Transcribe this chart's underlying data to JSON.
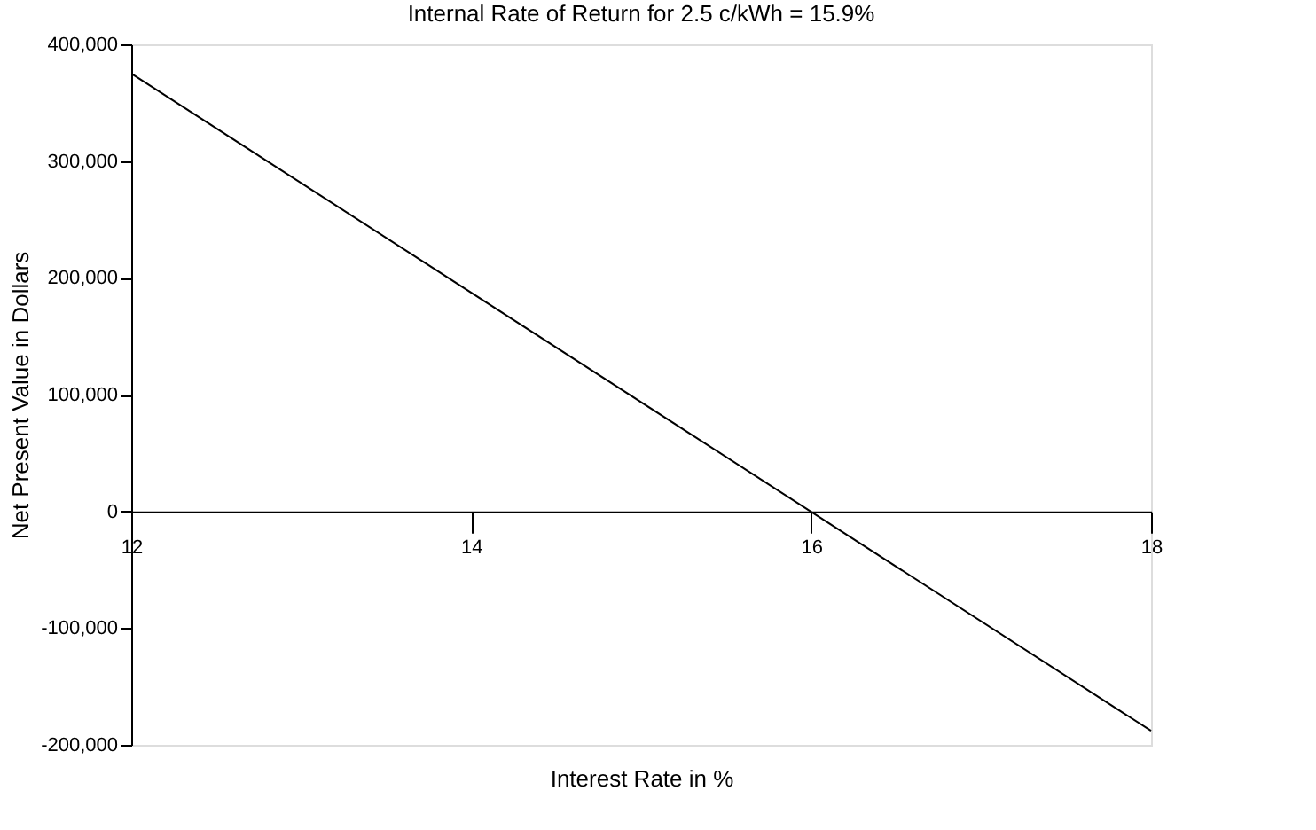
{
  "chart_data": {
    "type": "line",
    "title": "Internal Rate of Return for 2.5 c/kWh = 15.9%",
    "xlabel": "Interest Rate in %",
    "ylabel": "Net Present Value in Dollars",
    "x": [
      12,
      18
    ],
    "series": [
      {
        "color": "#000000",
        "values": [
          375000,
          -188000
        ]
      }
    ],
    "xlim": [
      12,
      18
    ],
    "xticks": [
      12,
      14,
      16,
      18
    ],
    "ylim": [
      -200000,
      400000
    ],
    "yticks": [
      {
        "value": -200000,
        "label": "-200,000"
      },
      {
        "value": -100000,
        "label": "-100,000"
      },
      0,
      {
        "value": 100000,
        "label": "100,000"
      },
      {
        "value": 200000,
        "label": "200,000"
      },
      {
        "value": 300000,
        "label": "300,000"
      },
      {
        "value": 400000,
        "label": "400,000"
      }
    ],
    "grid": false,
    "marker": "none",
    "line_style": "solid"
  }
}
